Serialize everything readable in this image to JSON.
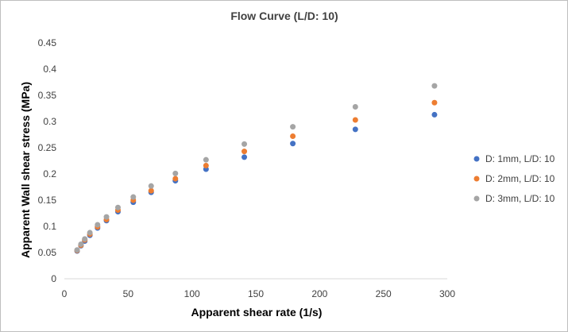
{
  "chart_data": {
    "type": "scatter",
    "title": "Flow Curve (L/D: 10)",
    "xlabel": "Apparent shear rate (1/s)",
    "ylabel": "Apparent Wall shear stress (MPa)",
    "xlim": [
      0,
      300
    ],
    "ylim": [
      0,
      0.45
    ],
    "xticks": [
      "0",
      "50",
      "100",
      "150",
      "200",
      "250",
      "300"
    ],
    "yticks": [
      "0",
      "0.05",
      "0.1",
      "0.15",
      "0.2",
      "0.25",
      "0.3",
      "0.35",
      "0.4",
      "0.45"
    ],
    "grid": false,
    "legend_position": "right",
    "series": [
      {
        "name": "D: 1mm, L/D: 10",
        "color": "#4472c4",
        "x": [
          10,
          13,
          16,
          20,
          26,
          33,
          42,
          54,
          68,
          87,
          111,
          141,
          179,
          228,
          290
        ],
        "y": [
          0.053,
          0.063,
          0.072,
          0.083,
          0.097,
          0.111,
          0.128,
          0.146,
          0.165,
          0.187,
          0.209,
          0.232,
          0.258,
          0.285,
          0.313
        ]
      },
      {
        "name": "D: 2mm, L/D: 10",
        "color": "#ed7d31",
        "x": [
          10,
          13,
          16,
          20,
          26,
          33,
          42,
          54,
          68,
          87,
          111,
          141,
          179,
          228,
          290
        ],
        "y": [
          0.054,
          0.064,
          0.074,
          0.085,
          0.099,
          0.113,
          0.131,
          0.15,
          0.168,
          0.191,
          0.216,
          0.243,
          0.272,
          0.303,
          0.336
        ]
      },
      {
        "name": "D: 3mm, L/D: 10",
        "color": "#a5a5a5",
        "x": [
          10,
          13,
          16,
          20,
          26,
          33,
          42,
          54,
          68,
          87,
          111,
          141,
          179,
          228,
          290
        ],
        "y": [
          0.055,
          0.066,
          0.076,
          0.088,
          0.103,
          0.118,
          0.136,
          0.156,
          0.177,
          0.201,
          0.227,
          0.257,
          0.29,
          0.328,
          0.368
        ]
      }
    ]
  }
}
